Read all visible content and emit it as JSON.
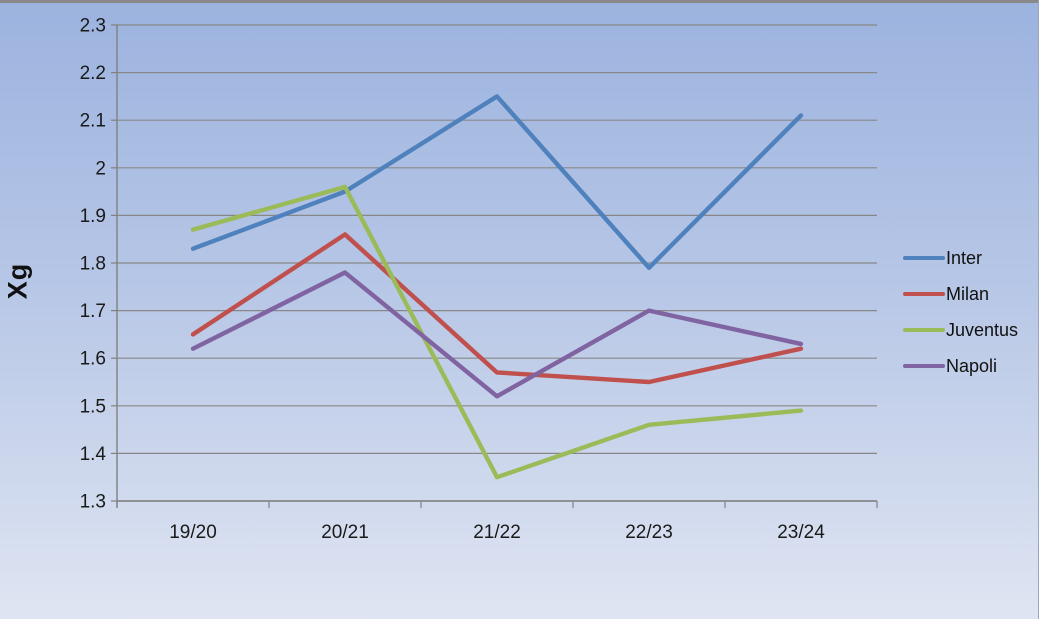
{
  "window": {
    "top_border_color": "#898989"
  },
  "colors": {
    "background_top": "#9cb3df",
    "background_bottom": "#dfe5f2",
    "gridline": "#878787",
    "axis": "#808080",
    "tick_text": "#1a1a1a",
    "inter": "#4f81bd",
    "milan": "#c0504d",
    "juventus": "#9bbb59",
    "napoli": "#8064a2"
  },
  "chart_data": {
    "type": "line",
    "title": "",
    "xlabel": "",
    "ylabel": "Xg",
    "categories": [
      "19/20",
      "20/21",
      "21/22",
      "22/23",
      "23/24"
    ],
    "series": [
      {
        "name": "Inter",
        "color": "#4f81bd",
        "values": [
          1.83,
          1.95,
          2.15,
          1.79,
          2.11
        ]
      },
      {
        "name": "Milan",
        "color": "#c0504d",
        "values": [
          1.65,
          1.86,
          1.57,
          1.55,
          1.62
        ]
      },
      {
        "name": "Juventus",
        "color": "#9bbb59",
        "values": [
          1.87,
          1.96,
          1.35,
          1.46,
          1.49
        ]
      },
      {
        "name": "Napoli",
        "color": "#8064a2",
        "values": [
          1.62,
          1.78,
          1.52,
          1.7,
          1.63
        ]
      }
    ],
    "ylim": [
      1.3,
      2.3
    ],
    "ytick_step": 0.1,
    "ytick_labels": [
      "2.3",
      "2.2",
      "2.1",
      "2",
      "1.9",
      "1.8",
      "1.7",
      "1.6",
      "1.5",
      "1.4",
      "1.3"
    ],
    "grid": true,
    "legend_position": "right",
    "line_width": 4.4
  }
}
